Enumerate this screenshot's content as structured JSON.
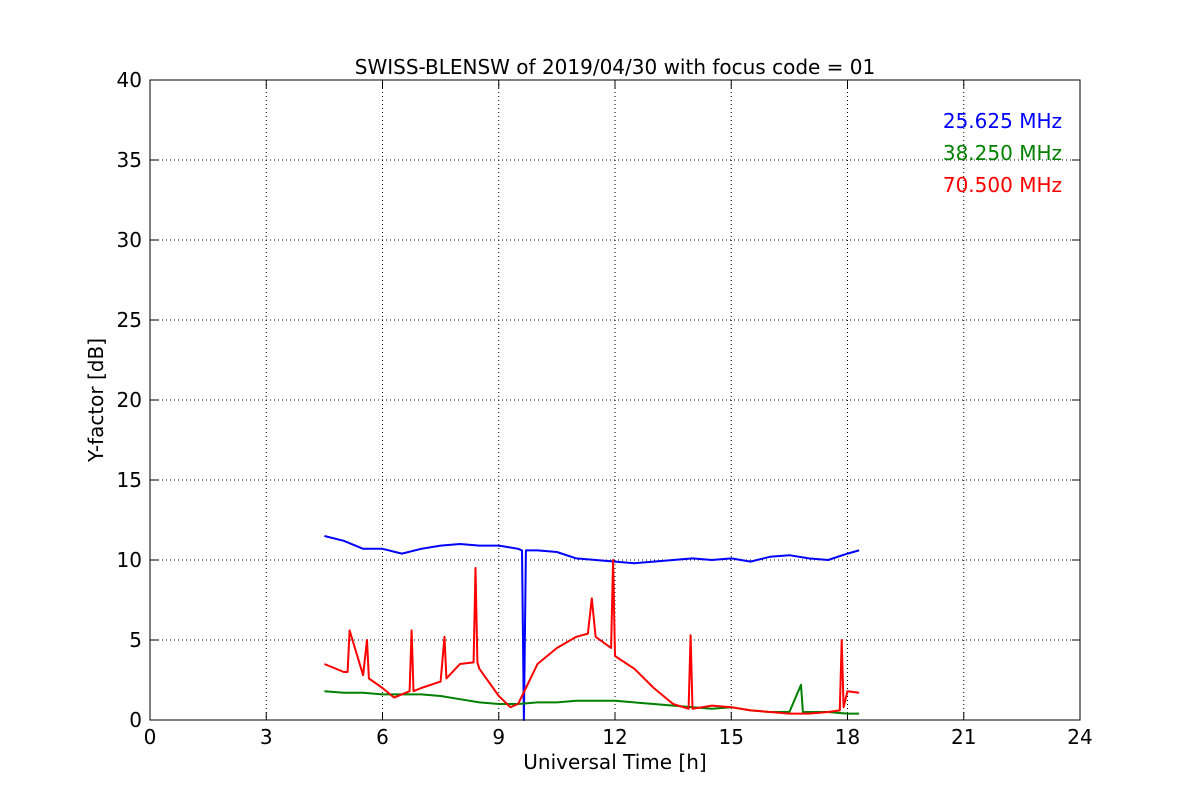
{
  "chart_data": {
    "type": "line",
    "title": "SWISS-BLENSW of 2019/04/30 with focus code = 01",
    "xlabel": "Universal Time [h]",
    "ylabel": "Y-factor [dB]",
    "xlim": [
      0,
      24
    ],
    "ylim": [
      0,
      40
    ],
    "xticks": [
      0,
      3,
      6,
      9,
      12,
      15,
      18,
      21,
      24
    ],
    "yticks": [
      0,
      5,
      10,
      15,
      20,
      25,
      30,
      35,
      40
    ],
    "xtick_labels": [
      "0",
      "3",
      "6",
      "9",
      "12",
      "15",
      "18",
      "21",
      "24"
    ],
    "ytick_labels": [
      "0",
      "5",
      "10",
      "15",
      "20",
      "25",
      "30",
      "35",
      "40"
    ],
    "grid": true,
    "legend_position": "top-right",
    "series": [
      {
        "name": "25.625 MHz",
        "color": "#0000ff",
        "x": [
          4.5,
          5.0,
          5.5,
          6.0,
          6.5,
          7.0,
          7.5,
          8.0,
          8.5,
          9.0,
          9.5,
          9.6,
          9.65,
          9.7,
          10.0,
          10.5,
          11.0,
          11.5,
          12.0,
          12.5,
          13.0,
          13.5,
          14.0,
          14.5,
          15.0,
          15.5,
          16.0,
          16.5,
          17.0,
          17.5,
          18.0,
          18.3
        ],
        "y": [
          11.5,
          11.2,
          10.7,
          10.7,
          10.4,
          10.7,
          10.9,
          11.0,
          10.9,
          10.9,
          10.7,
          10.6,
          0.0,
          10.6,
          10.6,
          10.5,
          10.1,
          10.0,
          9.9,
          9.8,
          9.9,
          10.0,
          10.1,
          10.0,
          10.1,
          9.9,
          10.2,
          10.3,
          10.1,
          10.0,
          10.4,
          10.6
        ]
      },
      {
        "name": "38.250 MHz",
        "color": "#008000",
        "x": [
          4.5,
          5.0,
          5.5,
          6.0,
          6.5,
          7.0,
          7.5,
          8.0,
          8.5,
          9.0,
          9.5,
          10.0,
          10.5,
          11.0,
          11.5,
          12.0,
          12.5,
          13.0,
          13.5,
          14.0,
          14.5,
          15.0,
          15.5,
          16.0,
          16.5,
          16.8,
          16.85,
          17.0,
          17.5,
          18.0,
          18.3
        ],
        "y": [
          1.8,
          1.7,
          1.7,
          1.6,
          1.6,
          1.6,
          1.5,
          1.3,
          1.1,
          1.0,
          1.0,
          1.1,
          1.1,
          1.2,
          1.2,
          1.2,
          1.1,
          1.0,
          0.9,
          0.8,
          0.7,
          0.8,
          0.6,
          0.5,
          0.5,
          2.2,
          0.5,
          0.5,
          0.5,
          0.4,
          0.4
        ]
      },
      {
        "name": "70.500 MHz",
        "color": "#ff0000",
        "x": [
          4.5,
          5.0,
          5.1,
          5.15,
          5.5,
          5.6,
          5.65,
          6.0,
          6.3,
          6.7,
          6.75,
          6.8,
          7.0,
          7.5,
          7.6,
          7.65,
          8.0,
          8.35,
          8.4,
          8.45,
          8.5,
          9.0,
          9.3,
          9.5,
          9.7,
          10.0,
          10.5,
          11.0,
          11.3,
          11.4,
          11.5,
          11.9,
          11.95,
          12.0,
          12.5,
          13.0,
          13.5,
          13.9,
          13.95,
          14.0,
          14.5,
          15.0,
          15.5,
          16.0,
          16.5,
          17.0,
          17.5,
          17.8,
          17.85,
          17.9,
          18.0,
          18.3
        ],
        "y": [
          3.5,
          3.0,
          3.0,
          5.6,
          2.8,
          5.0,
          2.6,
          2.0,
          1.4,
          1.8,
          5.6,
          1.8,
          2.0,
          2.4,
          5.2,
          2.6,
          3.5,
          3.6,
          9.5,
          3.6,
          3.2,
          1.5,
          0.8,
          1.0,
          2.0,
          3.5,
          4.5,
          5.2,
          5.4,
          7.6,
          5.2,
          4.5,
          10.0,
          4.0,
          3.2,
          2.0,
          1.0,
          0.7,
          5.3,
          0.7,
          0.9,
          0.8,
          0.6,
          0.5,
          0.4,
          0.4,
          0.5,
          0.6,
          5.0,
          0.8,
          1.8,
          1.7
        ]
      }
    ]
  }
}
